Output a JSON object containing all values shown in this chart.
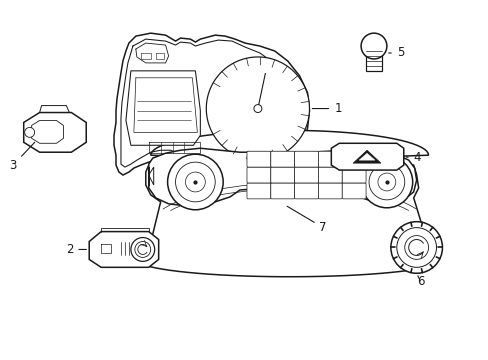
{
  "bg_color": "#ffffff",
  "line_color": "#1a1a1a",
  "line_width": 1.1,
  "label_fontsize": 8.5,
  "fig_w": 4.89,
  "fig_h": 3.6,
  "dpi": 100
}
